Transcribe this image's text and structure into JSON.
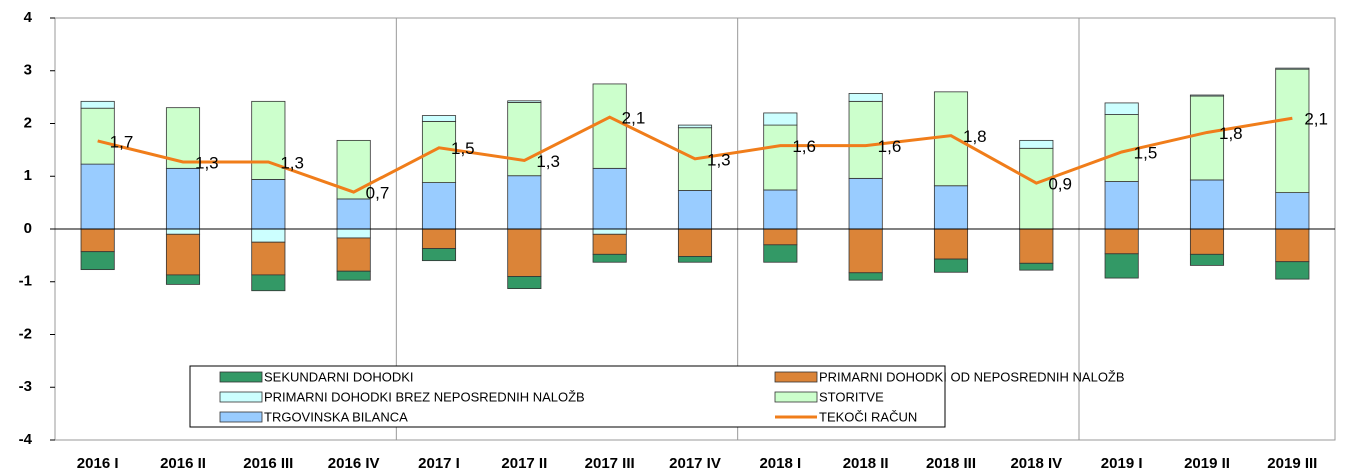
{
  "chart_data": {
    "type": "stacked_bar_line",
    "categories": [
      "2016 I",
      "2016 II",
      "2016 III",
      "2016 IV",
      "2017 I",
      "2017 II",
      "2017 III",
      "2017 IV",
      "2018 I",
      "2018 II",
      "2018 III",
      "2018 IV",
      "2019 I",
      "2019 II",
      "2019 III"
    ],
    "series": [
      {
        "name": "SEKUNDARNI DOHODKI",
        "color": "#339966",
        "values": [
          -0.34,
          -0.18,
          -0.3,
          -0.17,
          -0.23,
          -0.23,
          -0.15,
          -0.11,
          -0.33,
          -0.14,
          -0.25,
          -0.13,
          -0.46,
          -0.21,
          -0.33
        ]
      },
      {
        "name": "PRIMARNI DOHODKI OD NEPOSREDNIH NALOŽB",
        "color": "#db8438",
        "values": [
          -0.43,
          -0.77,
          -0.62,
          -0.63,
          -0.37,
          -0.9,
          -0.38,
          -0.52,
          -0.3,
          -0.83,
          -0.57,
          -0.65,
          -0.47,
          -0.48,
          -0.62
        ]
      },
      {
        "name": "PRIMARNI DOHODKI BREZ NEPOSREDNIH NALOŽB",
        "color": "#ccffff",
        "values": [
          0.13,
          -0.1,
          -0.25,
          -0.17,
          0.11,
          0.03,
          -0.1,
          0.05,
          0.23,
          0.15,
          0.0,
          0.15,
          0.22,
          0.02,
          0.02
        ]
      },
      {
        "name": "STORITVE",
        "color": "#ccffcc",
        "values": [
          1.06,
          1.15,
          1.48,
          1.11,
          1.16,
          1.39,
          1.6,
          1.19,
          1.23,
          1.46,
          1.78,
          1.53,
          1.27,
          1.59,
          2.34
        ]
      },
      {
        "name": "TRGOVINSKA BILANCA",
        "color": "#99ccff",
        "values": [
          1.23,
          1.15,
          0.94,
          0.57,
          0.88,
          1.01,
          1.15,
          0.73,
          0.74,
          0.96,
          0.82,
          0.0,
          0.9,
          0.93,
          0.69
        ]
      },
      {
        "name": "TEKOČI RAČUN",
        "color": "#f07d1a",
        "type": "line",
        "values": [
          1.67,
          1.27,
          1.27,
          0.7,
          1.54,
          1.3,
          2.12,
          1.33,
          1.58,
          1.58,
          1.77,
          0.87,
          1.46,
          1.83,
          2.1
        ],
        "value_labels": [
          "1,7",
          "1,3",
          "1,3",
          "0,7",
          "1,5",
          "1,3",
          "2,1",
          "1,3",
          "1,6",
          "1,6",
          "1,8",
          "0,9",
          "1,5",
          "1,8",
          "2,1"
        ]
      }
    ],
    "ylim": [
      -4,
      4
    ],
    "yticks": [
      -4,
      -3,
      -2,
      -1,
      0,
      1,
      2,
      3,
      4
    ]
  }
}
